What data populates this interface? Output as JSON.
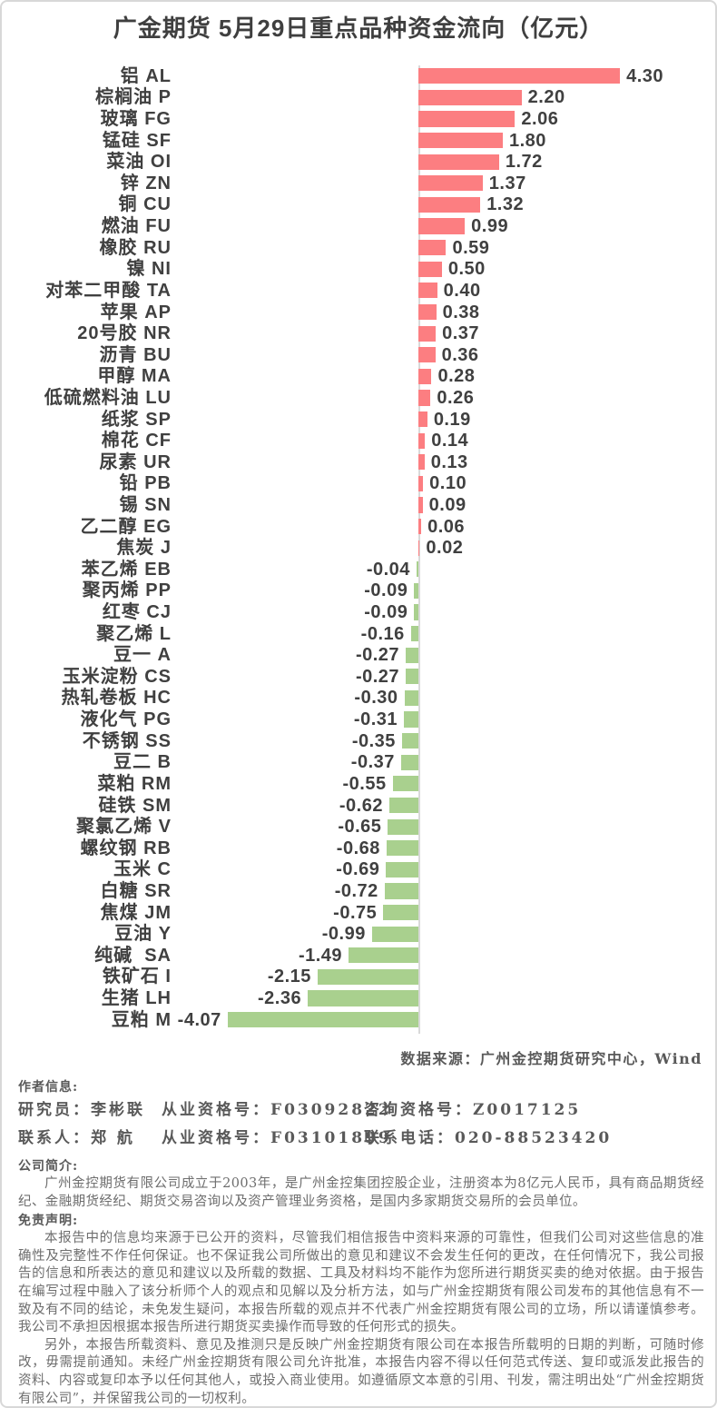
{
  "page": {
    "title": "广金期货 5月29日重点品种资金流向（亿元）"
  },
  "chart_data": {
    "type": "bar",
    "orientation": "horizontal",
    "title": "广金期货 5月29日重点品种资金流向（亿元）",
    "unit": "亿元",
    "xlim": [
      -4.07,
      4.3
    ],
    "grid": false,
    "positive_color": "#fc7e81",
    "negative_color": "#a9d08e",
    "axis_color": "#d9d9d9",
    "categories": [
      "铝 AL",
      "棕榈油 P",
      "玻璃 FG",
      "锰硅 SF",
      "菜油 OI",
      "锌 ZN",
      "铜 CU",
      "燃油 FU",
      "橡胶 RU",
      "镍 NI",
      "对苯二甲酸 TA",
      "苹果 AP",
      "20号胶 NR",
      "沥青 BU",
      "甲醇 MA",
      "低硫燃料油 LU",
      "纸浆 SP",
      "棉花 CF",
      "尿素 UR",
      "铅 PB",
      "锡 SN",
      "乙二醇 EG",
      "焦炭 J",
      "苯乙烯 EB",
      "聚丙烯 PP",
      "红枣 CJ",
      "聚乙烯 L",
      "豆一 A",
      "玉米淀粉 CS",
      "热轧卷板 HC",
      "液化气 PG",
      "不锈钢 SS",
      "豆二 B",
      "菜粕 RM",
      "硅铁 SM",
      "聚氯乙烯 V",
      "螺纹钢 RB",
      "玉米 C",
      "白糖 SR",
      "焦煤 JM",
      "豆油 Y",
      "纯碱  SA",
      "铁矿石 I",
      "生猪 LH",
      "豆粕 M"
    ],
    "values": [
      4.3,
      2.2,
      2.06,
      1.8,
      1.72,
      1.37,
      1.32,
      0.99,
      0.59,
      0.5,
      0.4,
      0.38,
      0.37,
      0.36,
      0.28,
      0.26,
      0.19,
      0.14,
      0.13,
      0.1,
      0.09,
      0.06,
      0.02,
      -0.04,
      -0.09,
      -0.09,
      -0.16,
      -0.27,
      -0.27,
      -0.3,
      -0.31,
      -0.35,
      -0.37,
      -0.55,
      -0.62,
      -0.65,
      -0.68,
      -0.69,
      -0.72,
      -0.75,
      -0.99,
      -1.49,
      -2.15,
      -2.36,
      -4.07
    ]
  },
  "footer": {
    "source": "数据来源：广州金控期货研究中心，Wind",
    "author": {
      "heading": "作者信息:",
      "lines": [
        {
          "parts": [
            "研究员：李彬联",
            "从业资格号：F03092822",
            "咨询资格号：Z0017125"
          ]
        },
        {
          "parts": [
            "联系人：郑 航",
            "从业资格号：F03101899",
            "联系电话：020-88523420"
          ]
        }
      ]
    },
    "company": {
      "heading": "公司简介:",
      "text": "广州金控期货有限公司成立于2003年，是广州金控集团控股企业，注册资本为8亿元人民币，具有商品期货经纪、金融期货经纪、期货交易咨询以及资产管理业务资格，是国内多家期货交易所的会员单位。"
    },
    "disclaimer": {
      "heading": "免责声明:",
      "paragraphs": [
        "本报告中的信息均来源于已公开的资料，尽管我们相信报告中资料来源的可靠性，但我们公司对这些信息的准确性及完整性不作任何保证。也不保证我公司所做出的意见和建议不会发生任何的更改，在任何情况下，我公司报告的信息和所表达的意见和建议以及所载的数据、工具及材料均不能作为您所进行期货买卖的绝对依据。由于报告在编写过程中融入了该分析师个人的观点和见解以及分析方法，如与广州金控期货有限公司发布的其他信息有不一致及有不同的结论，未免发生疑问，本报告所载的观点并不代表广州金控期货有限公司的立场，所以请谨慎参考。我公司不承担因根据本报告所进行期货买卖操作而导致的任何形式的损失。",
        "另外，本报告所载资料、意见及推测只是反映广州金控期货有限公司在本报告所载明的日期的判断，可随时修改，毋需提前通知。未经广州金控期货有限公司允许批准，本报告内容不得以任何范式传送、复印或派发此报告的资料、内容或复印本予以任何其他人，或投入商业使用。如遵循原文本意的引用、刊发，需注明出处“广州金控期货有限公司”，并保留我公司的一切权利。"
      ]
    }
  }
}
